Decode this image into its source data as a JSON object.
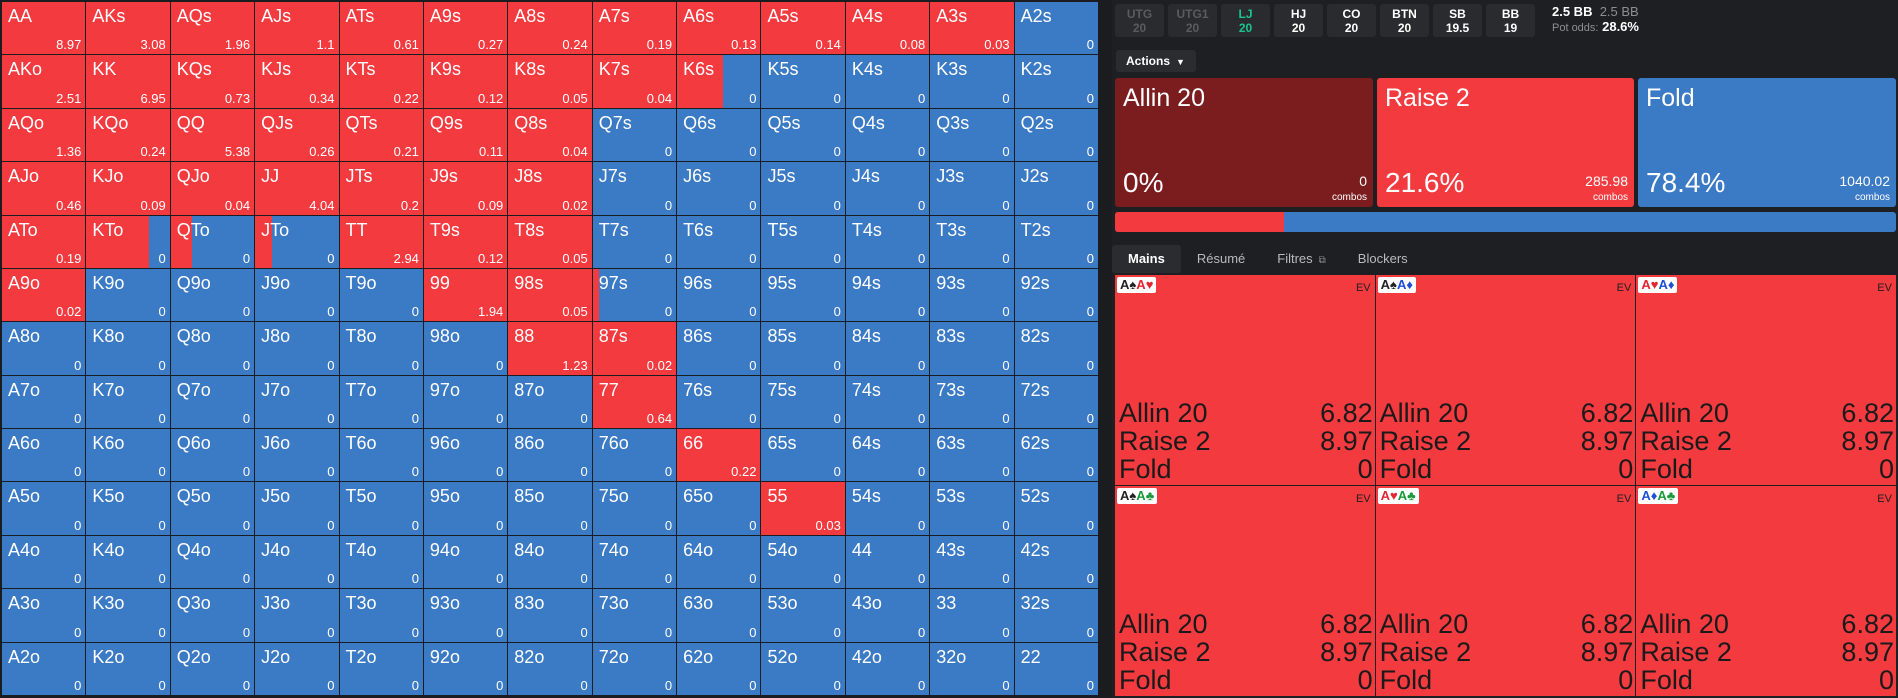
{
  "colors": {
    "raise": "#f23a3f",
    "fold": "#3b7ac4",
    "allin": "#7b1c1f",
    "suit_spade": "#222222",
    "suit_heart": "#e3262f",
    "suit_diamond": "#1f4fd6",
    "suit_club": "#1a9b3a"
  },
  "grid": [
    [
      "AA",
      "8.97",
      1
    ],
    [
      "AKs",
      "3.08",
      1
    ],
    [
      "AQs",
      "1.96",
      1
    ],
    [
      "AJs",
      "1.1",
      1
    ],
    [
      "ATs",
      "0.61",
      1
    ],
    [
      "A9s",
      "0.27",
      1
    ],
    [
      "A8s",
      "0.24",
      1
    ],
    [
      "A7s",
      "0.19",
      1
    ],
    [
      "A6s",
      "0.13",
      1
    ],
    [
      "A5s",
      "0.14",
      1
    ],
    [
      "A4s",
      "0.08",
      1
    ],
    [
      "A3s",
      "0.03",
      1
    ],
    [
      "A2s",
      "0",
      0
    ],
    [
      "AKo",
      "2.51",
      1
    ],
    [
      "KK",
      "6.95",
      1
    ],
    [
      "KQs",
      "0.73",
      1
    ],
    [
      "KJs",
      "0.34",
      1
    ],
    [
      "KTs",
      "0.22",
      1
    ],
    [
      "K9s",
      "0.12",
      1
    ],
    [
      "K8s",
      "0.05",
      1
    ],
    [
      "K7s",
      "0.04",
      1
    ],
    [
      "K6s",
      "0",
      0.55
    ],
    [
      "K5s",
      "0",
      0
    ],
    [
      "K4s",
      "0",
      0
    ],
    [
      "K3s",
      "0",
      0
    ],
    [
      "K2s",
      "0",
      0
    ],
    [
      "AQo",
      "1.36",
      1
    ],
    [
      "KQo",
      "0.24",
      1
    ],
    [
      "QQ",
      "5.38",
      1
    ],
    [
      "QJs",
      "0.26",
      1
    ],
    [
      "QTs",
      "0.21",
      1
    ],
    [
      "Q9s",
      "0.11",
      1
    ],
    [
      "Q8s",
      "0.04",
      1
    ],
    [
      "Q7s",
      "0",
      0
    ],
    [
      "Q6s",
      "0",
      0
    ],
    [
      "Q5s",
      "0",
      0
    ],
    [
      "Q4s",
      "0",
      0
    ],
    [
      "Q3s",
      "0",
      0
    ],
    [
      "Q2s",
      "0",
      0
    ],
    [
      "AJo",
      "0.46",
      1
    ],
    [
      "KJo",
      "0.09",
      1
    ],
    [
      "QJo",
      "0.04",
      1
    ],
    [
      "JJ",
      "4.04",
      1
    ],
    [
      "JTs",
      "0.2",
      1
    ],
    [
      "J9s",
      "0.09",
      1
    ],
    [
      "J8s",
      "0.02",
      1
    ],
    [
      "J7s",
      "0",
      0
    ],
    [
      "J6s",
      "0",
      0
    ],
    [
      "J5s",
      "0",
      0
    ],
    [
      "J4s",
      "0",
      0
    ],
    [
      "J3s",
      "0",
      0
    ],
    [
      "J2s",
      "0",
      0
    ],
    [
      "ATo",
      "0.19",
      1
    ],
    [
      "KTo",
      "0",
      0.75
    ],
    [
      "QTo",
      "0",
      0.25
    ],
    [
      "JTo",
      "0",
      0.2
    ],
    [
      "TT",
      "2.94",
      1
    ],
    [
      "T9s",
      "0.12",
      1
    ],
    [
      "T8s",
      "0.05",
      1
    ],
    [
      "T7s",
      "0",
      0
    ],
    [
      "T6s",
      "0",
      0
    ],
    [
      "T5s",
      "0",
      0
    ],
    [
      "T4s",
      "0",
      0
    ],
    [
      "T3s",
      "0",
      0
    ],
    [
      "T2s",
      "0",
      0
    ],
    [
      "A9o",
      "0.02",
      1
    ],
    [
      "K9o",
      "0",
      0
    ],
    [
      "Q9o",
      "0",
      0
    ],
    [
      "J9o",
      "0",
      0
    ],
    [
      "T9o",
      "0",
      0
    ],
    [
      "99",
      "1.94",
      1
    ],
    [
      "98s",
      "0.05",
      1
    ],
    [
      "97s",
      "0",
      0.08
    ],
    [
      "96s",
      "0",
      0
    ],
    [
      "95s",
      "0",
      0
    ],
    [
      "94s",
      "0",
      0
    ],
    [
      "93s",
      "0",
      0
    ],
    [
      "92s",
      "0",
      0
    ],
    [
      "A8o",
      "0",
      0
    ],
    [
      "K8o",
      "0",
      0
    ],
    [
      "Q8o",
      "0",
      0
    ],
    [
      "J8o",
      "0",
      0
    ],
    [
      "T8o",
      "0",
      0
    ],
    [
      "98o",
      "0",
      0
    ],
    [
      "88",
      "1.23",
      1
    ],
    [
      "87s",
      "0.02",
      1
    ],
    [
      "86s",
      "0",
      0
    ],
    [
      "85s",
      "0",
      0
    ],
    [
      "84s",
      "0",
      0
    ],
    [
      "83s",
      "0",
      0
    ],
    [
      "82s",
      "0",
      0
    ],
    [
      "A7o",
      "0",
      0
    ],
    [
      "K7o",
      "0",
      0
    ],
    [
      "Q7o",
      "0",
      0
    ],
    [
      "J7o",
      "0",
      0
    ],
    [
      "T7o",
      "0",
      0
    ],
    [
      "97o",
      "0",
      0
    ],
    [
      "87o",
      "0",
      0
    ],
    [
      "77",
      "0.64",
      1
    ],
    [
      "76s",
      "0",
      0
    ],
    [
      "75s",
      "0",
      0
    ],
    [
      "74s",
      "0",
      0
    ],
    [
      "73s",
      "0",
      0
    ],
    [
      "72s",
      "0",
      0
    ],
    [
      "A6o",
      "0",
      0
    ],
    [
      "K6o",
      "0",
      0
    ],
    [
      "Q6o",
      "0",
      0
    ],
    [
      "J6o",
      "0",
      0
    ],
    [
      "T6o",
      "0",
      0
    ],
    [
      "96o",
      "0",
      0
    ],
    [
      "86o",
      "0",
      0
    ],
    [
      "76o",
      "0",
      0
    ],
    [
      "66",
      "0.22",
      1
    ],
    [
      "65s",
      "0",
      0
    ],
    [
      "64s",
      "0",
      0
    ],
    [
      "63s",
      "0",
      0
    ],
    [
      "62s",
      "0",
      0
    ],
    [
      "A5o",
      "0",
      0
    ],
    [
      "K5o",
      "0",
      0
    ],
    [
      "Q5o",
      "0",
      0
    ],
    [
      "J5o",
      "0",
      0
    ],
    [
      "T5o",
      "0",
      0
    ],
    [
      "95o",
      "0",
      0
    ],
    [
      "85o",
      "0",
      0
    ],
    [
      "75o",
      "0",
      0
    ],
    [
      "65o",
      "0",
      0
    ],
    [
      "55",
      "0.03",
      1
    ],
    [
      "54s",
      "0",
      0
    ],
    [
      "53s",
      "0",
      0
    ],
    [
      "52s",
      "0",
      0
    ],
    [
      "A4o",
      "0",
      0
    ],
    [
      "K4o",
      "0",
      0
    ],
    [
      "Q4o",
      "0",
      0
    ],
    [
      "J4o",
      "0",
      0
    ],
    [
      "T4o",
      "0",
      0
    ],
    [
      "94o",
      "0",
      0
    ],
    [
      "84o",
      "0",
      0
    ],
    [
      "74o",
      "0",
      0
    ],
    [
      "64o",
      "0",
      0
    ],
    [
      "54o",
      "0",
      0
    ],
    [
      "44",
      "0",
      0
    ],
    [
      "43s",
      "0",
      0
    ],
    [
      "42s",
      "0",
      0
    ],
    [
      "A3o",
      "0",
      0
    ],
    [
      "K3o",
      "0",
      0
    ],
    [
      "Q3o",
      "0",
      0
    ],
    [
      "J3o",
      "0",
      0
    ],
    [
      "T3o",
      "0",
      0
    ],
    [
      "93o",
      "0",
      0
    ],
    [
      "83o",
      "0",
      0
    ],
    [
      "73o",
      "0",
      0
    ],
    [
      "63o",
      "0",
      0
    ],
    [
      "53o",
      "0",
      0
    ],
    [
      "43o",
      "0",
      0
    ],
    [
      "33",
      "0",
      0
    ],
    [
      "32s",
      "0",
      0
    ],
    [
      "A2o",
      "0",
      0
    ],
    [
      "K2o",
      "0",
      0
    ],
    [
      "Q2o",
      "0",
      0
    ],
    [
      "J2o",
      "0",
      0
    ],
    [
      "T2o",
      "0",
      0
    ],
    [
      "92o",
      "0",
      0
    ],
    [
      "82o",
      "0",
      0
    ],
    [
      "72o",
      "0",
      0
    ],
    [
      "62o",
      "0",
      0
    ],
    [
      "52o",
      "0",
      0
    ],
    [
      "42o",
      "0",
      0
    ],
    [
      "32o",
      "0",
      0
    ],
    [
      "22",
      "0",
      0
    ]
  ],
  "positions": [
    {
      "name": "UTG",
      "stack": "20",
      "state": "dim"
    },
    {
      "name": "UTG1",
      "stack": "20",
      "state": "dim"
    },
    {
      "name": "LJ",
      "stack": "20",
      "state": "active"
    },
    {
      "name": "HJ",
      "stack": "20",
      "state": "normal"
    },
    {
      "name": "CO",
      "stack": "20",
      "state": "normal"
    },
    {
      "name": "BTN",
      "stack": "20",
      "state": "normal"
    },
    {
      "name": "SB",
      "stack": "19.5",
      "state": "normal"
    },
    {
      "name": "BB",
      "stack": "19",
      "state": "normal"
    }
  ],
  "pot": {
    "bb_bold": "2.5 BB",
    "bb_grey": "2.5 BB",
    "odds_label": "Pot odds:",
    "odds_value": "28.6%"
  },
  "actions_button": "Actions",
  "actions": [
    {
      "title": "Allin 20",
      "pct": "0%",
      "combos": "0",
      "combos_label": "combos",
      "color": "#7b1c1f"
    },
    {
      "title": "Raise 2",
      "pct": "21.6%",
      "combos": "285.98",
      "combos_label": "combos",
      "color": "#f23a3f"
    },
    {
      "title": "Fold",
      "pct": "78.4%",
      "combos": "1040.02",
      "combos_label": "combos",
      "color": "#3b7ac4"
    }
  ],
  "bar": {
    "raise_fraction": 0.216
  },
  "tabs": [
    "Mains",
    "Résumé",
    "Filtres",
    "Blockers"
  ],
  "ev_label": "EV",
  "cards": [
    {
      "c1": "A",
      "s1": "♠",
      "k1": "spade",
      "c2": "A",
      "s2": "♥",
      "k2": "heart",
      "rows": [
        [
          "Allin 20",
          "6.82"
        ],
        [
          "Raise 2",
          "8.97"
        ],
        [
          "Fold",
          "0"
        ]
      ]
    },
    {
      "c1": "A",
      "s1": "♠",
      "k1": "spade",
      "c2": "A",
      "s2": "♦",
      "k2": "diamond",
      "rows": [
        [
          "Allin 20",
          "6.82"
        ],
        [
          "Raise 2",
          "8.97"
        ],
        [
          "Fold",
          "0"
        ]
      ]
    },
    {
      "c1": "A",
      "s1": "♥",
      "k1": "heart",
      "c2": "A",
      "s2": "♦",
      "k2": "diamond",
      "rows": [
        [
          "Allin 20",
          "6.82"
        ],
        [
          "Raise 2",
          "8.97"
        ],
        [
          "Fold",
          "0"
        ]
      ]
    },
    {
      "c1": "A",
      "s1": "♠",
      "k1": "spade",
      "c2": "A",
      "s2": "♣",
      "k2": "club",
      "rows": [
        [
          "Allin 20",
          "6.82"
        ],
        [
          "Raise 2",
          "8.97"
        ],
        [
          "Fold",
          "0"
        ]
      ]
    },
    {
      "c1": "A",
      "s1": "♥",
      "k1": "heart",
      "c2": "A",
      "s2": "♣",
      "k2": "club",
      "rows": [
        [
          "Allin 20",
          "6.82"
        ],
        [
          "Raise 2",
          "8.97"
        ],
        [
          "Fold",
          "0"
        ]
      ]
    },
    {
      "c1": "A",
      "s1": "♦",
      "k1": "diamond",
      "c2": "A",
      "s2": "♣",
      "k2": "club",
      "rows": [
        [
          "Allin 20",
          "6.82"
        ],
        [
          "Raise 2",
          "8.97"
        ],
        [
          "Fold",
          "0"
        ]
      ]
    }
  ]
}
